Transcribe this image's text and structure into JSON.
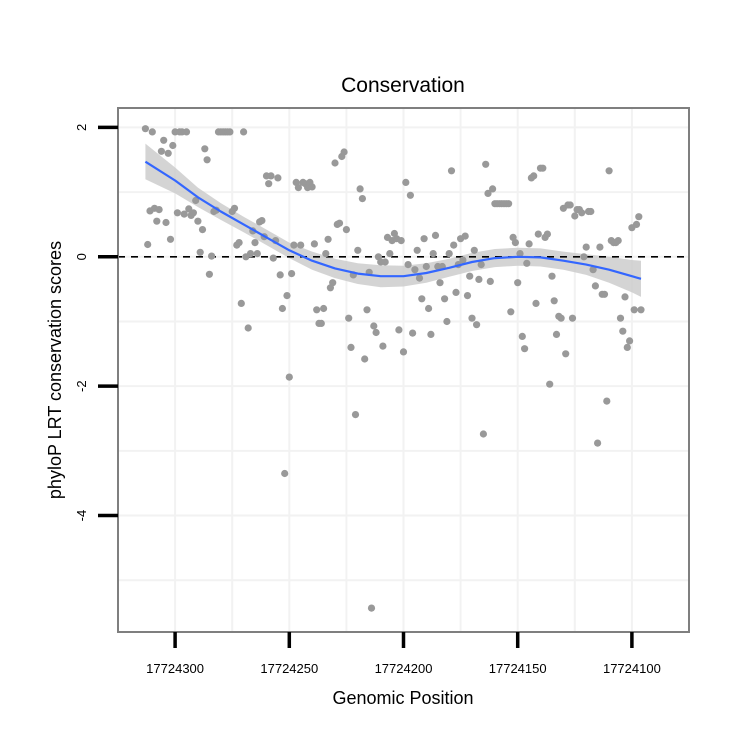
{
  "chart_data": {
    "type": "scatter",
    "title": "Conservation",
    "xlabel": "Genomic Position",
    "ylabel": "phyloP LRT conservation scores",
    "x_reversed": true,
    "xlim": [
      17724325,
      17724075
    ],
    "ylim": [
      -5.8,
      2.3
    ],
    "x_ticks": [
      17724300,
      17724250,
      17724200,
      17724150,
      17724100
    ],
    "x_tick_labels": [
      "17724300",
      "17724250",
      "17724200",
      "17724150",
      "17724100"
    ],
    "y_ticks": [
      2,
      0,
      -2,
      -4
    ],
    "y_tick_labels": [
      "2",
      "0",
      "-2",
      "-4"
    ],
    "grid": true,
    "reference_line": {
      "y": 0,
      "style": "dashed",
      "color": "#000000"
    },
    "colors": {
      "points": "#999999",
      "smooth_line": "#3366FF",
      "ribbon": "#cccccc",
      "grid": "#f2f2f2",
      "panel_border": "#7f7f7f"
    },
    "points": [
      [
        17724313,
        1.98
      ],
      [
        17724312,
        0.19
      ],
      [
        17724311,
        0.71
      ],
      [
        17724310,
        1.93
      ],
      [
        17724309,
        0.75
      ],
      [
        17724308,
        0.55
      ],
      [
        17724307,
        0.73
      ],
      [
        17724306,
        1.63
      ],
      [
        17724305,
        1.8
      ],
      [
        17724304,
        0.53
      ],
      [
        17724303,
        1.6
      ],
      [
        17724302,
        0.27
      ],
      [
        17724301,
        1.72
      ],
      [
        17724300,
        1.93
      ],
      [
        17724299,
        0.68
      ],
      [
        17724298,
        1.93
      ],
      [
        17724297,
        1.93
      ],
      [
        17724296,
        0.66
      ],
      [
        17724295,
        1.93
      ],
      [
        17724294,
        0.74
      ],
      [
        17724293,
        0.64
      ],
      [
        17724292,
        0.68
      ],
      [
        17724291,
        0.87
      ],
      [
        17724290,
        0.55
      ],
      [
        17724289,
        0.07
      ],
      [
        17724288,
        0.42
      ],
      [
        17724287,
        1.67
      ],
      [
        17724286,
        1.5
      ],
      [
        17724285,
        -0.27
      ],
      [
        17724284,
        0.01
      ],
      [
        17724283,
        0.7
      ],
      [
        17724282,
        0.72
      ],
      [
        17724281,
        1.93
      ],
      [
        17724280,
        1.93
      ],
      [
        17724279,
        1.93
      ],
      [
        17724278,
        1.93
      ],
      [
        17724277,
        1.93
      ],
      [
        17724276,
        1.93
      ],
      [
        17724275,
        0.7
      ],
      [
        17724274,
        0.75
      ],
      [
        17724273,
        0.18
      ],
      [
        17724272,
        0.22
      ],
      [
        17724271,
        -0.72
      ],
      [
        17724270,
        1.93
      ],
      [
        17724269,
        0.0
      ],
      [
        17724268,
        -1.1
      ],
      [
        17724267,
        0.05
      ],
      [
        17724266,
        0.4
      ],
      [
        17724265,
        0.22
      ],
      [
        17724264,
        0.05
      ],
      [
        17724263,
        0.54
      ],
      [
        17724262,
        0.56
      ],
      [
        17724261,
        0.31
      ],
      [
        17724260,
        1.25
      ],
      [
        17724259,
        1.13
      ],
      [
        17724258,
        1.25
      ],
      [
        17724257,
        -0.02
      ],
      [
        17724256,
        0.25
      ],
      [
        17724255,
        1.22
      ],
      [
        17724254,
        -0.28
      ],
      [
        17724253,
        -0.8
      ],
      [
        17724252,
        -3.35
      ],
      [
        17724251,
        -0.6
      ],
      [
        17724250,
        -1.86
      ],
      [
        17724249,
        -0.26
      ],
      [
        17724248,
        0.18
      ],
      [
        17724247,
        1.15
      ],
      [
        17724246,
        1.07
      ],
      [
        17724245,
        0.18
      ],
      [
        17724244,
        1.15
      ],
      [
        17724243,
        1.13
      ],
      [
        17724242,
        1.07
      ],
      [
        17724241,
        1.15
      ],
      [
        17724240,
        1.08
      ],
      [
        17724239,
        0.2
      ],
      [
        17724238,
        -0.82
      ],
      [
        17724237,
        -1.03
      ],
      [
        17724236,
        -1.03
      ],
      [
        17724235,
        -0.8
      ],
      [
        17724234,
        0.05
      ],
      [
        17724233,
        0.27
      ],
      [
        17724232,
        -0.48
      ],
      [
        17724231,
        -0.4
      ],
      [
        17724230,
        1.45
      ],
      [
        17724229,
        0.5
      ],
      [
        17724228,
        0.52
      ],
      [
        17724227,
        1.55
      ],
      [
        17724226,
        1.62
      ],
      [
        17724225,
        0.42
      ],
      [
        17724224,
        -0.95
      ],
      [
        17724223,
        -1.4
      ],
      [
        17724222,
        -0.28
      ],
      [
        17724221,
        -2.44
      ],
      [
        17724220,
        0.1
      ],
      [
        17724219,
        1.05
      ],
      [
        17724218,
        0.9
      ],
      [
        17724217,
        -1.58
      ],
      [
        17724216,
        -0.82
      ],
      [
        17724215,
        -0.24
      ],
      [
        17724214,
        -5.43
      ],
      [
        17724213,
        -1.07
      ],
      [
        17724212,
        -1.17
      ],
      [
        17724211,
        0.0
      ],
      [
        17724210,
        -0.08
      ],
      [
        17724209,
        -1.38
      ],
      [
        17724208,
        -0.08
      ],
      [
        17724207,
        0.3
      ],
      [
        17724206,
        0.05
      ],
      [
        17724205,
        0.25
      ],
      [
        17724204,
        0.36
      ],
      [
        17724203,
        0.28
      ],
      [
        17724202,
        -1.13
      ],
      [
        17724201,
        0.25
      ],
      [
        17724200,
        -1.47
      ],
      [
        17724199,
        1.15
      ],
      [
        17724198,
        -0.12
      ],
      [
        17724197,
        0.95
      ],
      [
        17724196,
        -1.18
      ],
      [
        17724195,
        -0.2
      ],
      [
        17724194,
        0.1
      ],
      [
        17724193,
        -0.33
      ],
      [
        17724192,
        -0.65
      ],
      [
        17724191,
        0.28
      ],
      [
        17724190,
        -0.15
      ],
      [
        17724189,
        -0.8
      ],
      [
        17724188,
        -1.2
      ],
      [
        17724187,
        0.05
      ],
      [
        17724186,
        0.33
      ],
      [
        17724185,
        -0.15
      ],
      [
        17724184,
        -0.4
      ],
      [
        17724183,
        -0.15
      ],
      [
        17724182,
        -0.65
      ],
      [
        17724181,
        -1.0
      ],
      [
        17724180,
        0.05
      ],
      [
        17724179,
        1.33
      ],
      [
        17724178,
        0.18
      ],
      [
        17724177,
        -0.55
      ],
      [
        17724176,
        -0.12
      ],
      [
        17724175,
        0.28
      ],
      [
        17724174,
        -0.05
      ],
      [
        17724173,
        0.32
      ],
      [
        17724172,
        -0.6
      ],
      [
        17724171,
        -0.3
      ],
      [
        17724170,
        -0.95
      ],
      [
        17724169,
        0.1
      ],
      [
        17724168,
        -1.05
      ],
      [
        17724167,
        -0.35
      ],
      [
        17724166,
        -0.12
      ],
      [
        17724165,
        -2.74
      ],
      [
        17724164,
        1.43
      ],
      [
        17724163,
        0.98
      ],
      [
        17724162,
        -0.38
      ],
      [
        17724161,
        1.05
      ],
      [
        17724160,
        0.82
      ],
      [
        17724159,
        0.82
      ],
      [
        17724158,
        0.82
      ],
      [
        17724157,
        0.82
      ],
      [
        17724156,
        0.82
      ],
      [
        17724155,
        0.82
      ],
      [
        17724154,
        0.82
      ],
      [
        17724153,
        -0.85
      ],
      [
        17724152,
        0.3
      ],
      [
        17724151,
        0.22
      ],
      [
        17724150,
        -0.4
      ],
      [
        17724149,
        0.05
      ],
      [
        17724148,
        -1.23
      ],
      [
        17724147,
        -1.42
      ],
      [
        17724146,
        -0.1
      ],
      [
        17724145,
        0.2
      ],
      [
        17724144,
        1.22
      ],
      [
        17724143,
        1.25
      ],
      [
        17724142,
        -0.72
      ],
      [
        17724141,
        0.35
      ],
      [
        17724140,
        1.37
      ],
      [
        17724139,
        1.37
      ],
      [
        17724138,
        0.3
      ],
      [
        17724137,
        0.35
      ],
      [
        17724136,
        -1.97
      ],
      [
        17724135,
        -0.3
      ],
      [
        17724134,
        -0.68
      ],
      [
        17724133,
        -1.2
      ],
      [
        17724132,
        -0.92
      ],
      [
        17724131,
        -0.95
      ],
      [
        17724130,
        0.75
      ],
      [
        17724129,
        -1.5
      ],
      [
        17724128,
        0.8
      ],
      [
        17724127,
        0.8
      ],
      [
        17724126,
        -0.95
      ],
      [
        17724125,
        0.63
      ],
      [
        17724124,
        0.73
      ],
      [
        17724123,
        0.73
      ],
      [
        17724122,
        0.68
      ],
      [
        17724121,
        0.0
      ],
      [
        17724120,
        0.15
      ],
      [
        17724119,
        0.7
      ],
      [
        17724118,
        0.7
      ],
      [
        17724117,
        -0.2
      ],
      [
        17724116,
        -0.45
      ],
      [
        17724115,
        -2.88
      ],
      [
        17724114,
        0.15
      ],
      [
        17724113,
        -0.58
      ],
      [
        17724112,
        -0.58
      ],
      [
        17724111,
        -2.23
      ],
      [
        17724110,
        1.33
      ],
      [
        17724109,
        0.25
      ],
      [
        17724108,
        0.22
      ],
      [
        17724107,
        0.22
      ],
      [
        17724106,
        0.25
      ],
      [
        17724105,
        -0.95
      ],
      [
        17724104,
        -1.15
      ],
      [
        17724103,
        -0.62
      ],
      [
        17724102,
        -1.4
      ],
      [
        17724101,
        -1.3
      ],
      [
        17724100,
        0.45
      ],
      [
        17724099,
        -0.82
      ],
      [
        17724098,
        0.5
      ],
      [
        17724097,
        0.62
      ],
      [
        17724096,
        -0.82
      ]
    ],
    "smooth_line": [
      [
        17724313,
        1.47
      ],
      [
        17724300,
        1.18
      ],
      [
        17724290,
        0.92
      ],
      [
        17724280,
        0.7
      ],
      [
        17724270,
        0.5
      ],
      [
        17724260,
        0.3
      ],
      [
        17724250,
        0.1
      ],
      [
        17724240,
        -0.06
      ],
      [
        17724230,
        -0.18
      ],
      [
        17724220,
        -0.26
      ],
      [
        17724210,
        -0.3
      ],
      [
        17724200,
        -0.3
      ],
      [
        17724190,
        -0.25
      ],
      [
        17724180,
        -0.17
      ],
      [
        17724170,
        -0.08
      ],
      [
        17724160,
        -0.02
      ],
      [
        17724150,
        0.0
      ],
      [
        17724140,
        -0.01
      ],
      [
        17724130,
        -0.06
      ],
      [
        17724120,
        -0.12
      ],
      [
        17724110,
        -0.2
      ],
      [
        17724100,
        -0.3
      ],
      [
        17724096,
        -0.34
      ]
    ],
    "ribbon": [
      [
        17724313,
        1.2,
        1.75
      ],
      [
        17724300,
        0.98,
        1.38
      ],
      [
        17724290,
        0.77,
        1.07
      ],
      [
        17724280,
        0.57,
        0.83
      ],
      [
        17724270,
        0.38,
        0.62
      ],
      [
        17724260,
        0.18,
        0.42
      ],
      [
        17724250,
        -0.02,
        0.22
      ],
      [
        17724240,
        -0.2,
        0.08
      ],
      [
        17724230,
        -0.33,
        -0.03
      ],
      [
        17724220,
        -0.42,
        -0.1
      ],
      [
        17724210,
        -0.47,
        -0.13
      ],
      [
        17724200,
        -0.46,
        -0.14
      ],
      [
        17724190,
        -0.4,
        -0.1
      ],
      [
        17724180,
        -0.31,
        -0.03
      ],
      [
        17724170,
        -0.22,
        0.06
      ],
      [
        17724160,
        -0.16,
        0.12
      ],
      [
        17724150,
        -0.14,
        0.14
      ],
      [
        17724140,
        -0.15,
        0.13
      ],
      [
        17724130,
        -0.2,
        0.08
      ],
      [
        17724120,
        -0.28,
        0.04
      ],
      [
        17724110,
        -0.4,
        0.0
      ],
      [
        17724100,
        -0.55,
        -0.05
      ],
      [
        17724096,
        -0.62,
        -0.06
      ]
    ]
  }
}
